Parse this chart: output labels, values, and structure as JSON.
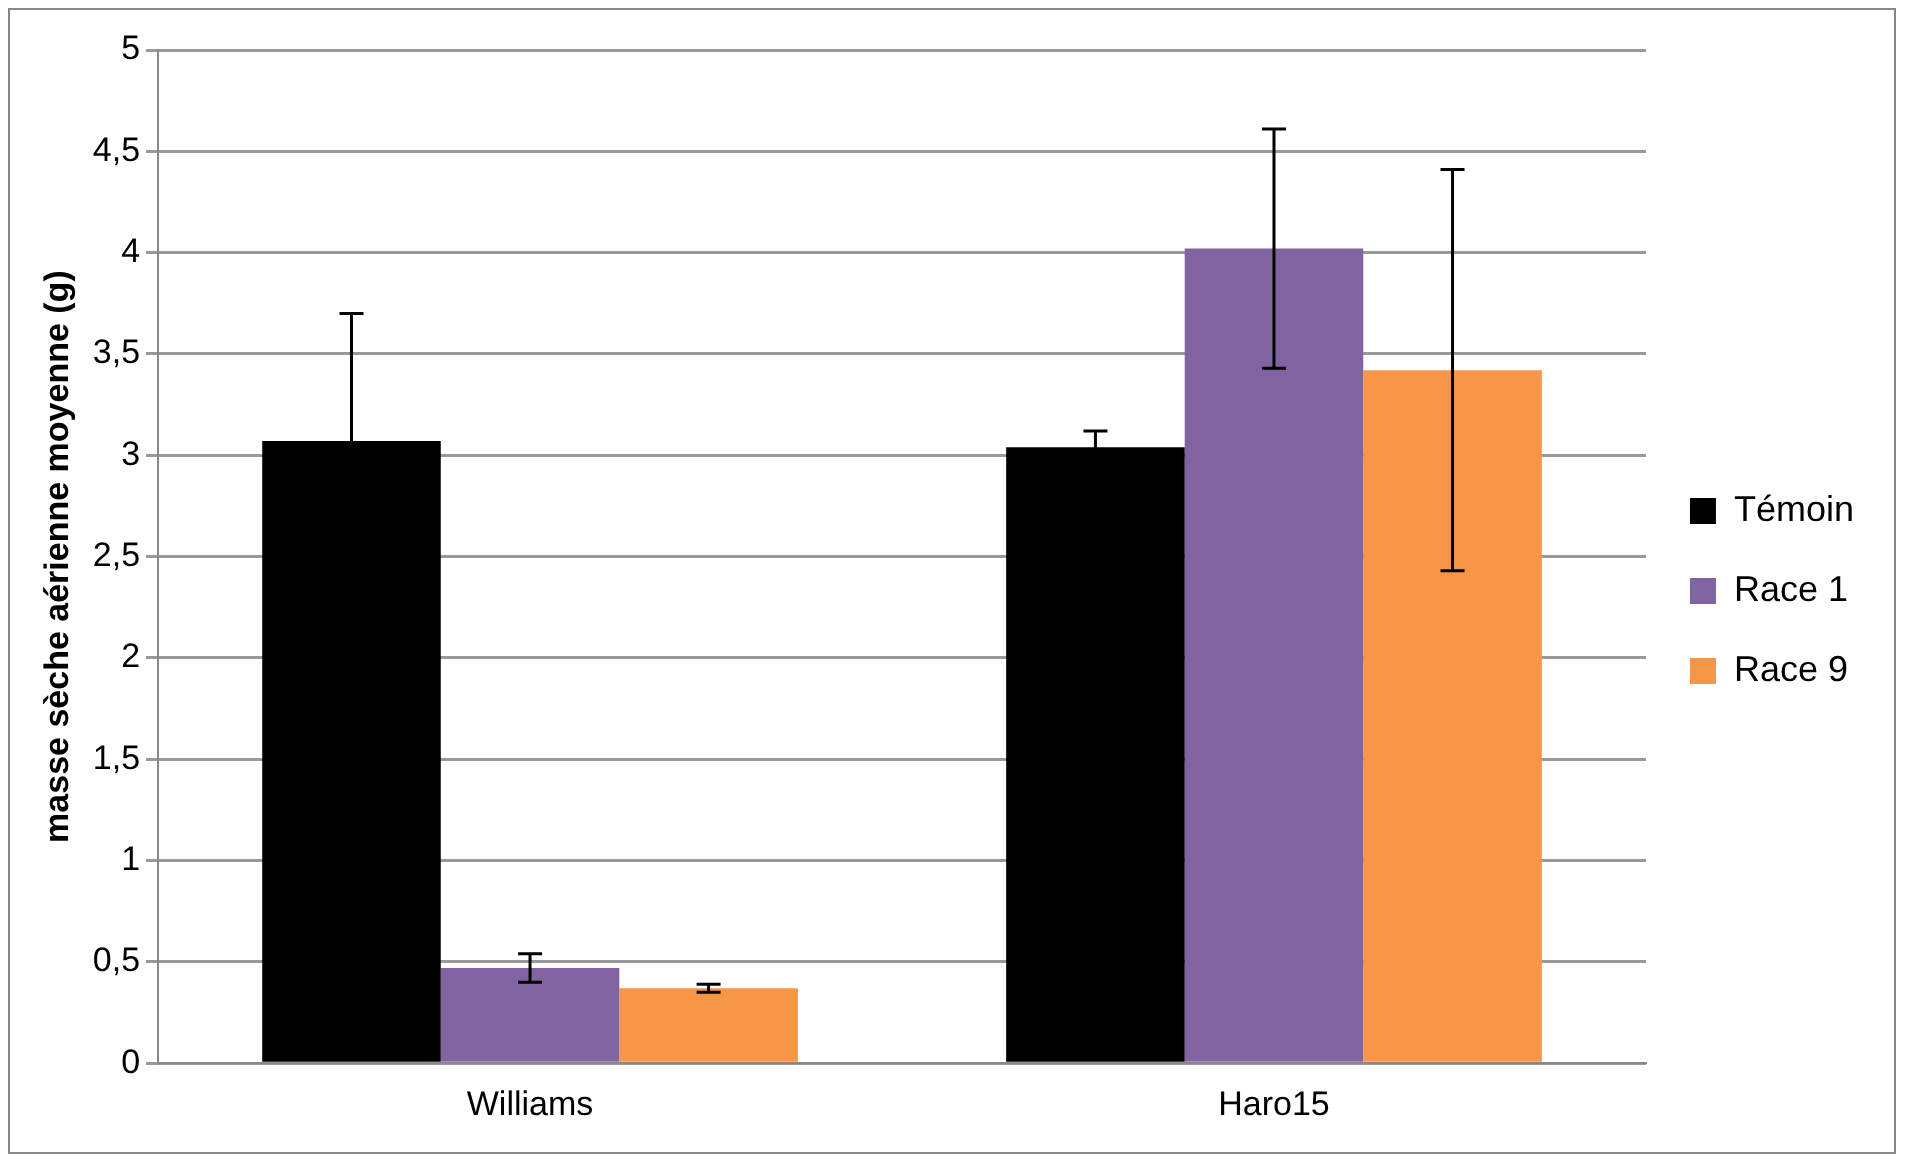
{
  "chart_data": {
    "type": "bar",
    "ylabel": "masse sèche aérienne moyenne (g)",
    "categories": [
      "Williams",
      "Haro15"
    ],
    "series": [
      {
        "name": "Témoin",
        "color": "#000000",
        "values": [
          3.07,
          3.04
        ],
        "errors": [
          0.63,
          0.08
        ]
      },
      {
        "name": "Race 1",
        "color": "#8064a2",
        "values": [
          0.47,
          4.02
        ],
        "errors": [
          0.07,
          0.59
        ]
      },
      {
        "name": "Race 9",
        "color": "#f79646",
        "values": [
          0.37,
          3.42
        ],
        "errors": [
          0.02,
          0.99
        ]
      }
    ],
    "ylim": [
      0,
      5
    ],
    "yticks": [
      0,
      {
        "value": 0.5,
        "label": "0,5"
      },
      1,
      {
        "value": 1.5,
        "label": "1,5"
      },
      2,
      {
        "value": 2.5,
        "label": "2,5"
      },
      3,
      {
        "value": 3.5,
        "label": "3,5"
      },
      4,
      {
        "value": 4.5,
        "label": "4,5"
      },
      5
    ],
    "grid": "y",
    "legend": "right"
  }
}
